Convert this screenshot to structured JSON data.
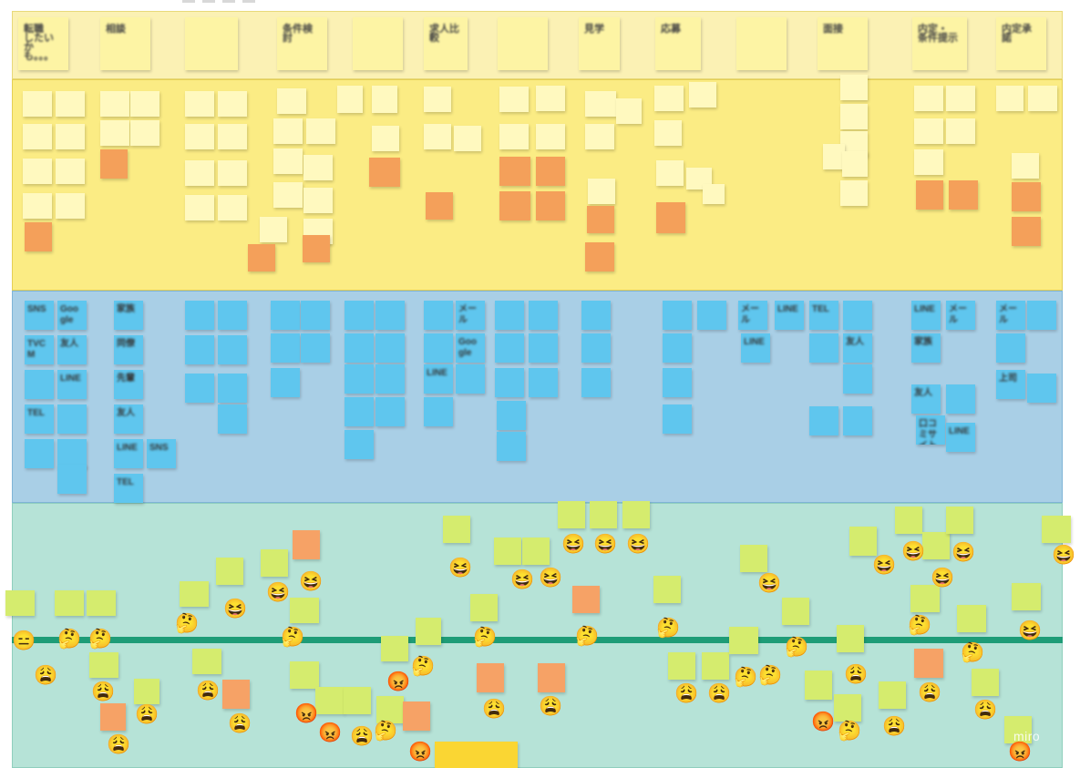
{
  "board": {
    "header_notes": [
      "転職\nしたいかも。。。",
      "相談",
      "",
      "条件検討",
      "",
      "求人比較",
      "",
      "見学",
      "応募",
      "",
      "面接",
      "内定・\n条件提示",
      "内定承諾"
    ],
    "channel_notes": [
      "SNS",
      "Google",
      "TVCM",
      "友人",
      "",
      "LINE",
      "TEL",
      "",
      "",
      "",
      "",
      "家族",
      "同僚",
      "先輩",
      "友人",
      "LINE",
      "SNS",
      "TEL",
      "",
      "",
      "",
      "",
      "",
      "",
      "",
      "",
      "",
      "",
      "",
      "",
      "",
      "",
      "",
      "",
      "",
      "",
      "",
      "",
      "",
      "",
      "メール",
      "",
      "Google",
      "LINE",
      "",
      "",
      "",
      "",
      "",
      "",
      "",
      "",
      "",
      "",
      "",
      "",
      "",
      "",
      "",
      "",
      "",
      "",
      "メール",
      "LINE",
      "LINE",
      "TEL",
      "",
      "",
      "友人",
      "",
      "",
      "",
      "LINE",
      "メール",
      "家族",
      "友人",
      "",
      "口コミサイト",
      "LINE",
      "メール",
      "",
      "",
      "上司",
      "",
      "メール",
      "LINE"
    ],
    "emotions": [
      {
        "icon": "expressionless-face-icon",
        "glyph": "😑"
      },
      {
        "icon": "thinking-face-icon",
        "glyph": "🤔"
      },
      {
        "icon": "weary-face-icon",
        "glyph": "😩"
      },
      {
        "icon": "grinning-squinting-face-icon",
        "glyph": "😆"
      },
      {
        "icon": "pouting-face-icon",
        "glyph": "😡"
      }
    ],
    "watermark": "miro"
  }
}
